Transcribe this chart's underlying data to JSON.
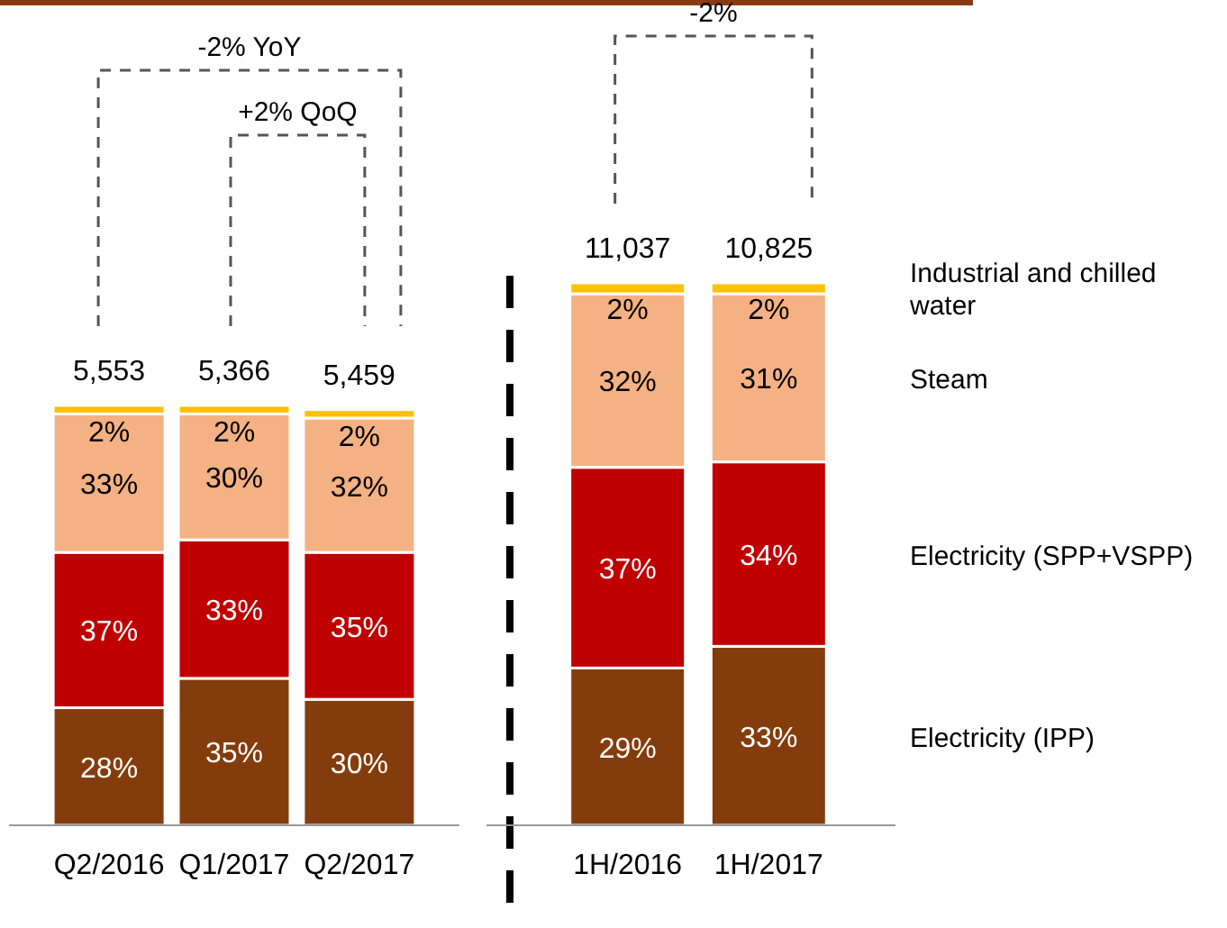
{
  "chart_data": [
    {
      "type": "bar",
      "stacked": true,
      "categories": [
        "Q2/2016",
        "Q1/2017",
        "Q2/2017"
      ],
      "series": [
        {
          "color": "#843c0c",
          "values": [
            28,
            35,
            30
          ],
          "value_labels": [
            "28%",
            "35%",
            "30%"
          ]
        },
        {
          "color": "#c00000",
          "values": [
            37,
            33,
            35
          ],
          "value_labels": [
            "37%",
            "33%",
            "35%"
          ]
        },
        {
          "color": "#f4b183",
          "values": [
            33,
            30,
            32
          ],
          "value_labels": [
            "33%",
            "30%",
            "32%"
          ]
        },
        {
          "color": "#ffc000",
          "values": [
            2,
            2,
            2
          ],
          "value_labels": [
            "2%",
            "2%",
            "2%"
          ]
        }
      ],
      "annotations": [
        "-2% YoY",
        "+2% QoQ",
        "5,553",
        "5,366",
        "5,459"
      ]
    },
    {
      "type": "bar",
      "stacked": true,
      "categories": [
        "1H/2016",
        "1H/2017"
      ],
      "series": [
        {
          "name": "Electricity (IPP)",
          "color": "#843c0c",
          "values": [
            29,
            33
          ],
          "value_labels": [
            "29%",
            "33%"
          ]
        },
        {
          "name": "Electricity (SPP+VSPP)",
          "color": "#c00000",
          "values": [
            37,
            34
          ],
          "value_labels": [
            "37%",
            "34%"
          ]
        },
        {
          "name": "Steam",
          "color": "#f4b183",
          "values": [
            32,
            31
          ],
          "value_labels": [
            "32%",
            "31%"
          ]
        },
        {
          "name": "Industrial and chilled water",
          "color": "#ffc000",
          "values": [
            2,
            2
          ],
          "value_labels": [
            "2%",
            "2%"
          ]
        }
      ],
      "annotations": [
        "-2%",
        "11,037",
        "10,825"
      ]
    }
  ]
}
